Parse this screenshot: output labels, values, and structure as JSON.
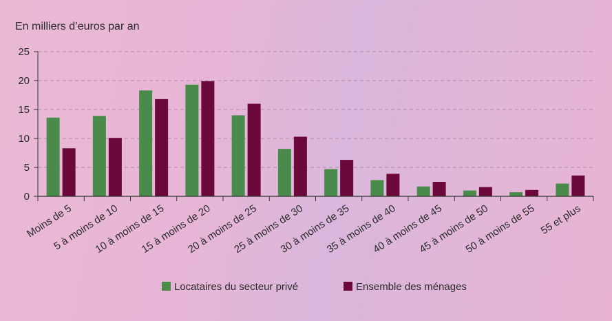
{
  "chart_data": {
    "type": "bar",
    "title": "",
    "ylabel": "En milliers d’euros par an",
    "xlabel": "",
    "ylim": [
      0,
      25
    ],
    "yticks": [
      0,
      5,
      10,
      15,
      20,
      25
    ],
    "grid": true,
    "legend_position": "bottom",
    "categories": [
      "Moins de 5",
      "5 à moins de 10",
      "10 à moins de 15",
      "15 à moins de 20",
      "20 à moins de 25",
      "25 à moins de 30",
      "30 à moins de 35",
      "35 à moins de 40",
      "40 à moins de 45",
      "45 à moins de 50",
      "50 à moins de 55",
      "55 et plus"
    ],
    "series": [
      {
        "name": "Locataires du secteur privé",
        "color": "#4a8a4a",
        "values": [
          13.6,
          13.9,
          18.3,
          19.3,
          14.0,
          8.2,
          4.7,
          2.8,
          1.7,
          1.0,
          0.7,
          2.2
        ]
      },
      {
        "name": "Ensemble des ménages",
        "color": "#6b0a3a",
        "values": [
          8.3,
          10.1,
          16.8,
          19.9,
          16.0,
          10.3,
          6.3,
          3.9,
          2.5,
          1.6,
          1.1,
          3.6
        ]
      }
    ]
  }
}
